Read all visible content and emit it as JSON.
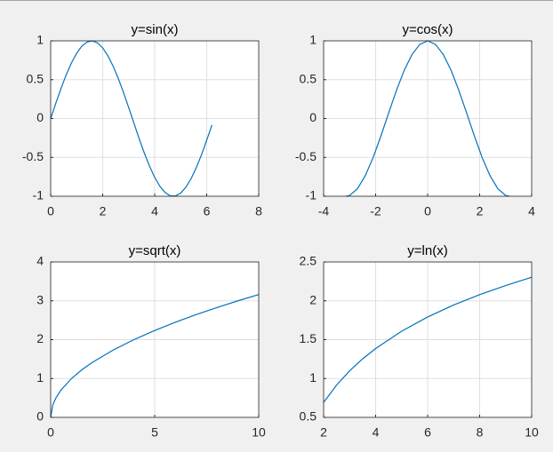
{
  "chart_data": [
    {
      "type": "line",
      "title": "y=sin(x)",
      "color": "#0072bd",
      "grid": true,
      "x": [
        0,
        0.2,
        0.4,
        0.6,
        0.8,
        1.0,
        1.2,
        1.4,
        1.6,
        1.8,
        2.0,
        2.2,
        2.4,
        2.6,
        2.8,
        3.0,
        3.2,
        3.4,
        3.6,
        3.8,
        4.0,
        4.2,
        4.4,
        4.6,
        4.8,
        5.0,
        5.2,
        5.4,
        5.6,
        5.8,
        6.0,
        6.2
      ],
      "values": [
        0,
        0.199,
        0.389,
        0.565,
        0.717,
        0.841,
        0.932,
        0.985,
        1.0,
        0.974,
        0.909,
        0.808,
        0.675,
        0.516,
        0.335,
        0.141,
        -0.058,
        -0.256,
        -0.443,
        -0.612,
        -0.757,
        -0.872,
        -0.952,
        -0.994,
        -0.996,
        -0.959,
        -0.883,
        -0.773,
        -0.631,
        -0.465,
        -0.279,
        -0.083
      ],
      "xlim": [
        0,
        8
      ],
      "ylim": [
        -1,
        1
      ],
      "xticks": [
        0,
        2,
        4,
        6,
        8
      ],
      "yticks": [
        -1,
        -0.5,
        0,
        0.5,
        1
      ]
    },
    {
      "type": "line",
      "title": "y=cos(x)",
      "color": "#0072bd",
      "grid": true,
      "x": [
        -3.14,
        -3.0,
        -2.7,
        -2.4,
        -2.1,
        -1.8,
        -1.5,
        -1.2,
        -0.9,
        -0.6,
        -0.3,
        0,
        0.3,
        0.6,
        0.9,
        1.2,
        1.5,
        1.8,
        2.1,
        2.4,
        2.7,
        3.0,
        3.14
      ],
      "values": [
        -1.0,
        -0.99,
        -0.904,
        -0.737,
        -0.505,
        -0.227,
        0.071,
        0.362,
        0.622,
        0.825,
        0.955,
        1.0,
        0.955,
        0.825,
        0.622,
        0.362,
        0.071,
        -0.227,
        -0.505,
        -0.737,
        -0.904,
        -0.99,
        -1.0
      ],
      "xlim": [
        -4,
        4
      ],
      "ylim": [
        -1,
        1
      ],
      "xticks": [
        -4,
        -2,
        0,
        2,
        4
      ],
      "yticks": [
        -1,
        -0.5,
        0,
        0.5,
        1
      ]
    },
    {
      "type": "line",
      "title": "y=sqrt(x)",
      "color": "#0072bd",
      "grid": true,
      "x": [
        0,
        0.1,
        0.25,
        0.5,
        1,
        1.5,
        2,
        3,
        4,
        5,
        6,
        7,
        8,
        9,
        10
      ],
      "values": [
        0,
        0.316,
        0.5,
        0.707,
        1,
        1.225,
        1.414,
        1.732,
        2,
        2.236,
        2.449,
        2.646,
        2.828,
        3,
        3.162
      ],
      "xlim": [
        0,
        10
      ],
      "ylim": [
        0,
        4
      ],
      "xticks": [
        0,
        5,
        10
      ],
      "yticks": [
        0,
        1,
        2,
        3,
        4
      ]
    },
    {
      "type": "line",
      "title": "y=ln(x)",
      "color": "#0072bd",
      "grid": true,
      "x": [
        2,
        2.5,
        3,
        3.5,
        4,
        5,
        6,
        7,
        8,
        9,
        10
      ],
      "values": [
        0.693,
        0.916,
        1.099,
        1.253,
        1.386,
        1.609,
        1.792,
        1.946,
        2.079,
        2.197,
        2.303
      ],
      "xlim": [
        2,
        10
      ],
      "ylim": [
        0.5,
        2.5
      ],
      "xticks": [
        2,
        4,
        6,
        8,
        10
      ],
      "yticks": [
        0.5,
        1,
        1.5,
        2,
        2.5
      ]
    }
  ]
}
